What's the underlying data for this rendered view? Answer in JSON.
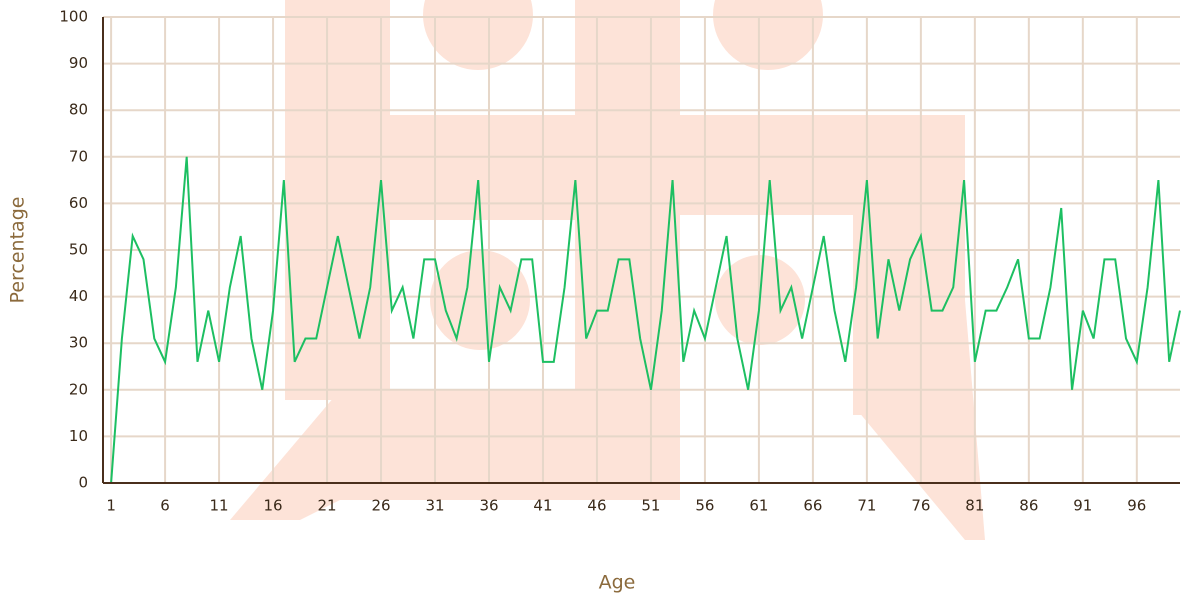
{
  "chart_data": {
    "type": "line",
    "x_label": "Age",
    "y_label": "Percentage",
    "x": [
      1,
      2,
      3,
      4,
      5,
      6,
      7,
      8,
      9,
      10,
      11,
      12,
      13,
      14,
      15,
      16,
      17,
      18,
      19,
      20,
      21,
      22,
      23,
      24,
      25,
      26,
      27,
      28,
      29,
      30,
      31,
      32,
      33,
      34,
      35,
      36,
      37,
      38,
      39,
      40,
      41,
      42,
      43,
      44,
      45,
      46,
      47,
      48,
      49,
      50,
      51,
      52,
      53,
      54,
      55,
      56,
      57,
      58,
      59,
      60,
      61,
      62,
      63,
      64,
      65,
      66,
      67,
      68,
      69,
      70,
      71,
      72,
      73,
      74,
      75,
      76,
      77,
      78,
      79,
      80,
      81,
      82,
      83,
      84,
      85,
      86,
      87,
      88,
      89,
      90,
      91,
      92,
      93,
      94,
      95,
      96,
      97,
      98,
      99,
      100
    ],
    "series": [
      {
        "color": "#1dbf62",
        "values": [
          0,
          31,
          53,
          48,
          31,
          26,
          42,
          70,
          26,
          37,
          26,
          42,
          53,
          31,
          20,
          37,
          65,
          26,
          31,
          31,
          42,
          53,
          42,
          31,
          42,
          65,
          37,
          42,
          31,
          48,
          48,
          37,
          31,
          42,
          65,
          26,
          42,
          37,
          48,
          48,
          26,
          26,
          42,
          65,
          31,
          37,
          37,
          48,
          48,
          31,
          20,
          37,
          65,
          26,
          37,
          31,
          42,
          53,
          31,
          20,
          37,
          65,
          37,
          42,
          31,
          42,
          53,
          37,
          26,
          42,
          65,
          31,
          48,
          37,
          48,
          53,
          37,
          37,
          42,
          65,
          26,
          37,
          37,
          42,
          48,
          31,
          31,
          42,
          59,
          20,
          37,
          31,
          48,
          48,
          31,
          26,
          42,
          65,
          26,
          37
        ]
      }
    ],
    "xlim": [
      0.25,
      100
    ],
    "xticks": [
      1,
      6,
      11,
      16,
      21,
      26,
      31,
      36,
      41,
      46,
      51,
      56,
      61,
      66,
      71,
      76,
      81,
      86,
      91,
      96
    ],
    "ylim": [
      0,
      100
    ],
    "yticks": [
      0,
      10,
      20,
      30,
      40,
      50,
      60,
      70,
      80,
      90,
      100
    ],
    "grid": true
  }
}
